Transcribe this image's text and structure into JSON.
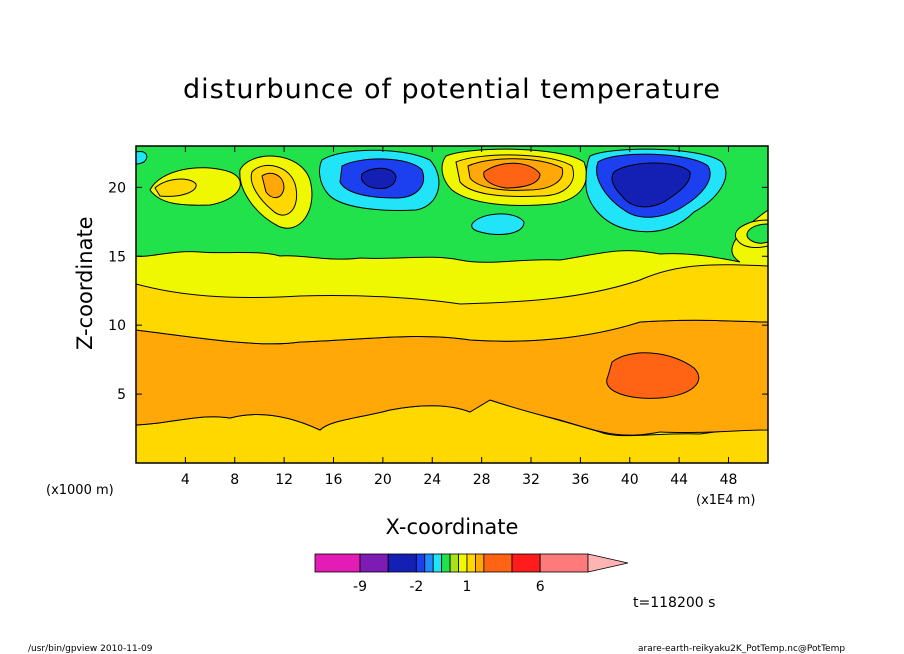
{
  "chart_data": {
    "type": "heatmap",
    "title": "disturbunce of potential temperature",
    "xlabel": "X-coordinate",
    "ylabel": "Z-coordinate",
    "x_unit": "(x1E4 m)",
    "y_unit": "(x1000 m)",
    "xticks": [
      "4",
      "8",
      "12",
      "16",
      "20",
      "24",
      "28",
      "32",
      "36",
      "40",
      "44",
      "48"
    ],
    "yticks": [
      "5",
      "10",
      "15",
      "20"
    ],
    "xlim": [
      0,
      51.2
    ],
    "ylim": [
      0,
      23
    ],
    "colorbar": {
      "levels": [
        -12,
        -9,
        -6,
        -2,
        -1.5,
        -1,
        -0.5,
        0,
        0.5,
        1,
        1.5,
        2,
        4,
        6,
        8
      ],
      "labels": [
        "-9",
        "-2",
        "1",
        "6"
      ],
      "colors": [
        "#e21cb4",
        "#7c1cb4",
        "#1420b4",
        "#1c40f0",
        "#1c8cff",
        "#22e4f8",
        "#22e24c",
        "#a8e21c",
        "#f0f800",
        "#ffd800",
        "#ffa808",
        "#ff6414",
        "#ff1c1c",
        "#ff7a7a",
        "#ffb4b4"
      ]
    },
    "time_label": "t=118200 s"
  },
  "footer": {
    "left": "/usr/bin/gpview   2010-11-09",
    "right": "arare-earth-reikyaku2K_PotTemp.nc@PotTemp"
  }
}
